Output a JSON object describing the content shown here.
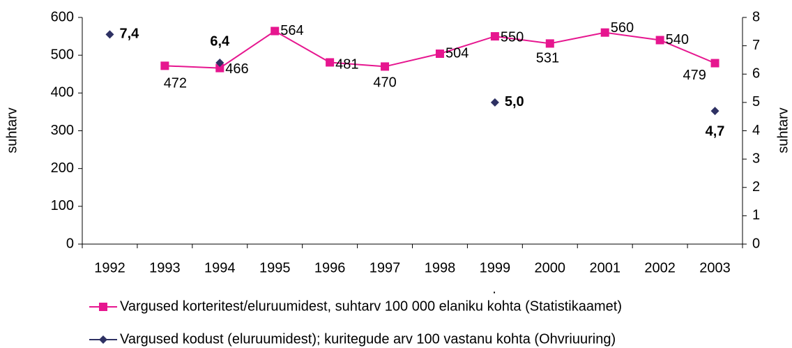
{
  "chart_data": {
    "type": "line",
    "categories": [
      "1992",
      "1993",
      "1994",
      "1995",
      "1996",
      "1997",
      "1998",
      "1999",
      "2000",
      "2001",
      "2002",
      "2003"
    ],
    "y_label": "suhtarv",
    "y2_label": "suhtarv",
    "x_label": ".",
    "ylim": [
      0,
      600
    ],
    "yticks": [
      0,
      100,
      200,
      300,
      400,
      500,
      600
    ],
    "y2lim": [
      0,
      8
    ],
    "y2ticks": [
      0,
      1,
      2,
      3,
      4,
      5,
      6,
      7,
      8
    ],
    "legend": "bottom",
    "series": [
      {
        "name": "Vargused korteritest/eluruumidest, suhtarv 100 000 elaniku kohta (Statistikaamet)",
        "color": "#e6168f",
        "marker": "square",
        "values": [
          null,
          472,
          466,
          564,
          481,
          470,
          504,
          550,
          531,
          560,
          540,
          479
        ]
      },
      {
        "name": "Vargused kodust (eluruumidest); kuritegude arv 100 vastanu kohta (Ohvriuuring)",
        "color": "#2e3163",
        "marker": "diamond",
        "axis": "y2",
        "values": [
          7.4,
          null,
          6.4,
          null,
          null,
          null,
          null,
          5.0,
          null,
          null,
          null,
          4.7
        ],
        "value_labels": [
          "7,4",
          null,
          "6,4",
          null,
          null,
          null,
          null,
          "5,0",
          null,
          null,
          null,
          "4,7"
        ]
      }
    ]
  }
}
